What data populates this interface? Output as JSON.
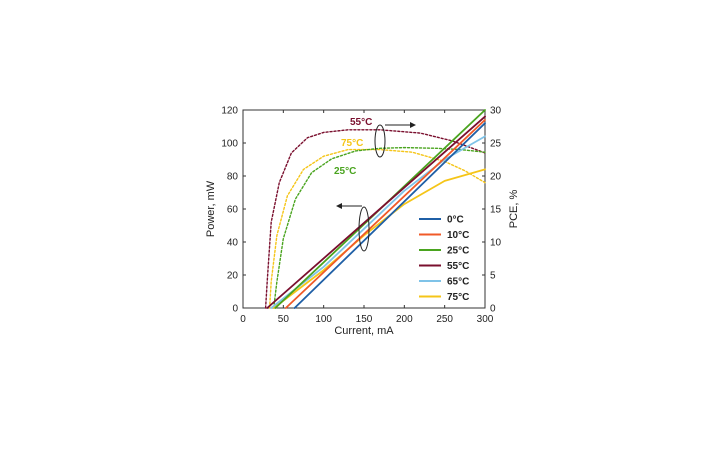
{
  "chart_data": {
    "type": "line",
    "xlabel": "Current, mA",
    "ylabel_left": "Power, mW",
    "ylabel_right": "PCE, %",
    "xlim": [
      0,
      300
    ],
    "ylim_left": [
      0,
      120
    ],
    "ylim_right": [
      0,
      30
    ],
    "x_ticks": [
      "0",
      "50",
      "100",
      "150",
      "200",
      "250",
      "300"
    ],
    "y_ticks_left": [
      "0",
      "20",
      "40",
      "60",
      "80",
      "100",
      "120"
    ],
    "y_ticks_right": [
      "0",
      "5",
      "10",
      "15",
      "20",
      "25",
      "30"
    ],
    "grid": false,
    "legend_position": "lower-right",
    "series": [
      {
        "name": "0°C",
        "color": "#1f5fa6",
        "axis": "left",
        "style": "solid",
        "x": [
          64,
          300
        ],
        "y": [
          0,
          112
        ]
      },
      {
        "name": "10°C",
        "color": "#f05a28",
        "axis": "left",
        "style": "solid",
        "x": [
          53,
          300
        ],
        "y": [
          0,
          114
        ]
      },
      {
        "name": "25°C",
        "color": "#4aa41f",
        "axis": "left",
        "style": "solid",
        "x": [
          40,
          300
        ],
        "y": [
          0,
          120
        ]
      },
      {
        "name": "55°C",
        "color": "#7a0f2e",
        "axis": "left",
        "style": "solid",
        "x": [
          30,
          300
        ],
        "y": [
          0,
          116
        ]
      },
      {
        "name": "65°C",
        "color": "#7fc3e8",
        "axis": "left",
        "style": "solid",
        "x": [
          35,
          100,
          150,
          200,
          250,
          300
        ],
        "y": [
          0,
          25,
          48,
          71,
          90,
          104
        ]
      },
      {
        "name": "75°C",
        "color": "#f5c518",
        "axis": "left",
        "style": "solid",
        "x": [
          38,
          100,
          150,
          200,
          250,
          300
        ],
        "y": [
          0,
          23,
          44,
          63,
          77,
          84
        ]
      },
      {
        "name": "PCE 55°C",
        "color": "#7a0f2e",
        "axis": "right",
        "style": "dotted",
        "x": [
          28,
          30,
          35,
          45,
          60,
          80,
          100,
          130,
          170,
          220,
          260,
          300
        ],
        "y": [
          0,
          4,
          13,
          19,
          23.5,
          25.8,
          26.6,
          27,
          27,
          26.5,
          25.3,
          23.5
        ]
      },
      {
        "name": "PCE 75°C",
        "color": "#f5c518",
        "axis": "right",
        "style": "dotted",
        "x": [
          33,
          35,
          42,
          55,
          75,
          100,
          130,
          170,
          210,
          250,
          275,
          300
        ],
        "y": [
          0,
          4,
          11,
          17,
          21,
          23,
          24,
          24,
          23.6,
          22.2,
          20.8,
          19
        ]
      },
      {
        "name": "PCE 25°C",
        "color": "#4aa41f",
        "axis": "right",
        "style": "dotted",
        "x": [
          38,
          42,
          50,
          65,
          85,
          110,
          140,
          170,
          200,
          240,
          270,
          300
        ],
        "y": [
          0,
          4,
          10.5,
          16.5,
          20.5,
          22.6,
          23.8,
          24.2,
          24.3,
          24.2,
          24,
          23.6
        ]
      }
    ],
    "annotations": [
      {
        "text": "55°C",
        "color": "#7a0f2e"
      },
      {
        "text": "75°C",
        "color": "#f5c518"
      },
      {
        "text": "25°C",
        "color": "#4aa41f"
      }
    ]
  }
}
